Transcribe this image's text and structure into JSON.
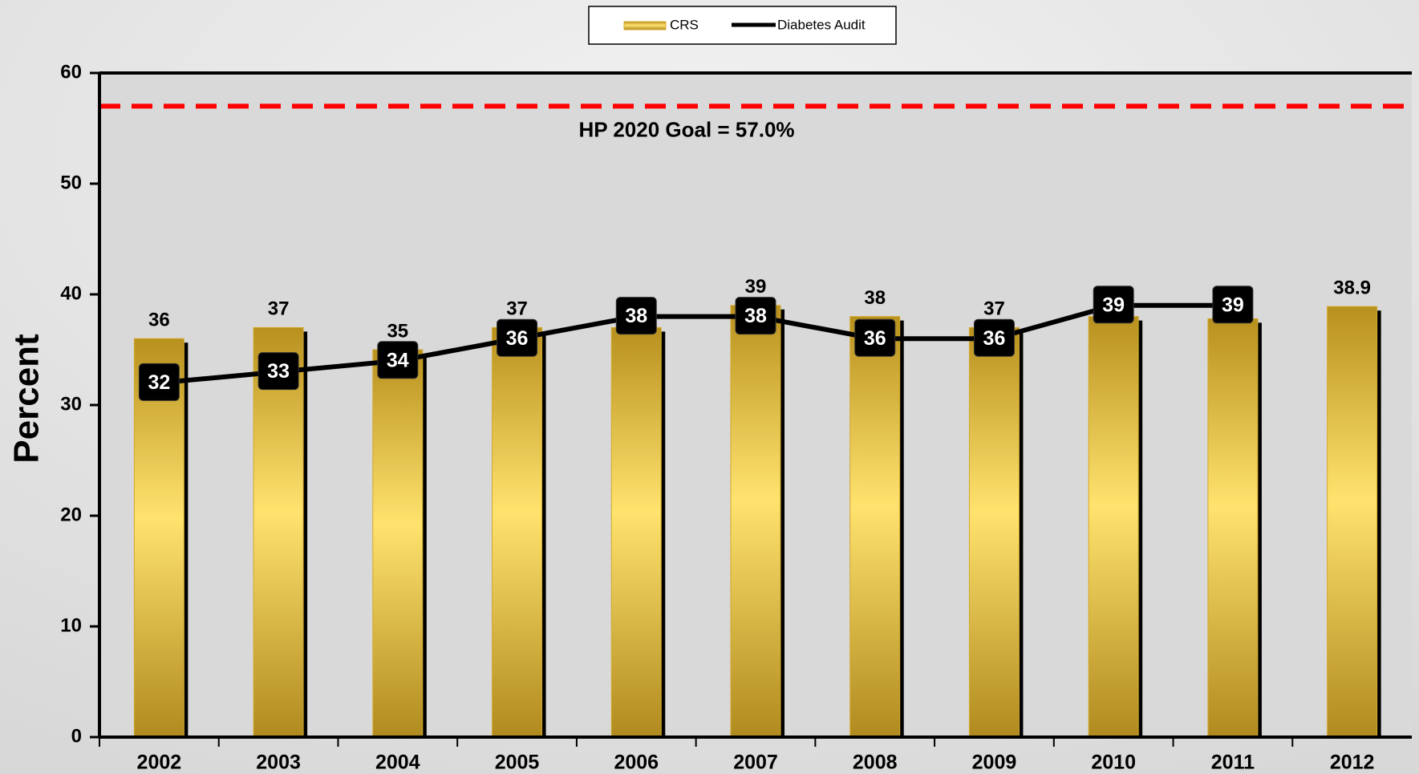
{
  "chart_data": {
    "type": "bar",
    "legend": "top",
    "ylabel": "Percent",
    "categories": [
      "2002",
      "2003",
      "2004",
      "2005",
      "2006",
      "2007",
      "2008",
      "2009",
      "2010",
      "2011",
      "2012"
    ],
    "series": [
      {
        "name": "CRS",
        "type": "bar",
        "color": "#d4a82a",
        "values": [
          36,
          37,
          35,
          37,
          37,
          39,
          38,
          37,
          38,
          37.8,
          38.9
        ]
      },
      {
        "name": "Diabetes Audit",
        "type": "line",
        "color": "#000000",
        "values": [
          32,
          33,
          34,
          36,
          38,
          38,
          36,
          36,
          39,
          39,
          null
        ]
      }
    ],
    "goal": {
      "value": 57,
      "label": "HP 2020 Goal = 57.0%",
      "color": "#ff0000"
    },
    "ylim": [
      0,
      60
    ],
    "yticks": [
      0,
      10,
      20,
      30,
      40,
      50,
      60
    ],
    "grid": false
  }
}
